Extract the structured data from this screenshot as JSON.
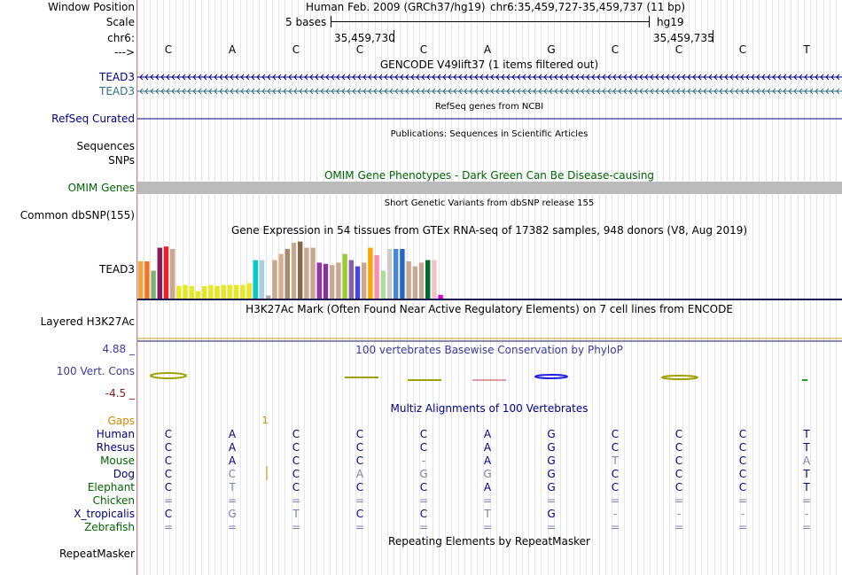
{
  "labels": {
    "window_position": "Window Position",
    "scale": "Scale",
    "chrom": "chr6:",
    "arrow": "--->",
    "tead3_a": "TEAD3",
    "tead3_b": "TEAD3",
    "refseq": "RefSeq Curated",
    "sequences": "Sequences",
    "snps": "SNPs",
    "omim": "OMIM Genes",
    "dbsnp": "Common dbSNP(155)",
    "gtex": "TEAD3",
    "h3k27ac": "Layered H3K27Ac",
    "phylop_max": "4.88 _",
    "cons": "100 Vert. Cons",
    "phylop_min": "-4.5 _",
    "gaps": "Gaps",
    "species": [
      {
        "name": "Human",
        "color": "#000080"
      },
      {
        "name": "Rhesus",
        "color": "#000080"
      },
      {
        "name": "Mouse",
        "color": "#006400"
      },
      {
        "name": "Dog",
        "color": "#000080"
      },
      {
        "name": "Elephant",
        "color": "#006400"
      },
      {
        "name": "Chicken",
        "color": "#006400"
      },
      {
        "name": "X_tropicalis",
        "color": "#000080"
      },
      {
        "name": "Zebrafish",
        "color": "#006400"
      }
    ],
    "repeatmasker": "RepeatMasker"
  },
  "header": {
    "assembly": "Human Feb. 2009 (GRCh37/hg19)",
    "position": "chr6:35,459,727-35,459,737 (11 bp)",
    "scale_text": "5 bases",
    "db": "hg19",
    "coord1": "35,459,730",
    "coord2": "35,459,735"
  },
  "bases": [
    "C",
    "A",
    "C",
    "C",
    "C",
    "A",
    "G",
    "C",
    "C",
    "C",
    "T"
  ],
  "tracks": {
    "gencode_title": "GENCODE V49lift37 (1 items filtered out)",
    "refseq_title": "RefSeq genes from NCBI",
    "pubs_title": "Publications: Sequences in Scientific Articles",
    "omim_title": "OMIM Gene Phenotypes - Dark Green Can Be Disease-causing",
    "dbsnp_title": "Short Genetic Variants from dbSNP release 155",
    "gtex_title": "Gene Expression in 54 tissues from GTEx RNA-seq of 17382 samples, 948 donors (V8, Aug 2019)",
    "h3k27ac_title": "H3K27Ac Mark (Often Found Near Active Regulatory Elements) on 7 cell lines from ENCODE",
    "phylop_title": "100 vertebrates Basewise Conservation by PhyloP",
    "multiz_title": "Multiz Alignments of 100 Vertebrates",
    "gap_count": "1",
    "repeat_title": "Repeating Elements by RepeatMasker"
  },
  "alignment": [
    [
      "C",
      "A",
      "C",
      "C",
      "C",
      "A",
      "G",
      "C",
      "C",
      "C",
      "T"
    ],
    [
      "C",
      "A",
      "C",
      "C",
      "C",
      "A",
      "G",
      "C",
      "C",
      "C",
      "T"
    ],
    [
      "C",
      "A",
      "C",
      "C",
      "-",
      "A",
      "G",
      "T",
      "C",
      "C",
      "A"
    ],
    [
      "C",
      "C",
      "C",
      "A",
      "G",
      "G",
      "G",
      "C",
      "C",
      "C",
      "T"
    ],
    [
      "C",
      "T",
      "C",
      "C",
      "C",
      "A",
      "G",
      "C",
      "C",
      "C",
      "T"
    ],
    [
      "=",
      "=",
      "=",
      "=",
      "=",
      "=",
      "=",
      "=",
      "=",
      "=",
      "="
    ],
    [
      "C",
      "G",
      "T",
      "C",
      "C",
      "T",
      "G",
      "-",
      "-",
      "-",
      "-"
    ],
    [
      "=",
      "=",
      "=",
      "=",
      "=",
      "=",
      "=",
      "=",
      "=",
      "=",
      "="
    ]
  ],
  "alignment_faded": [
    [
      0,
      0,
      0,
      0,
      0,
      0,
      0,
      0,
      0,
      0,
      0
    ],
    [
      0,
      0,
      0,
      0,
      0,
      0,
      0,
      0,
      0,
      0,
      0
    ],
    [
      0,
      0,
      0,
      0,
      1,
      0,
      0,
      1,
      0,
      0,
      1
    ],
    [
      0,
      1,
      0,
      1,
      1,
      1,
      0,
      0,
      0,
      0,
      0
    ],
    [
      0,
      1,
      0,
      0,
      0,
      0,
      0,
      0,
      0,
      0,
      0
    ],
    [
      1,
      1,
      1,
      1,
      1,
      1,
      1,
      1,
      1,
      1,
      1
    ],
    [
      0,
      1,
      1,
      0,
      0,
      1,
      0,
      1,
      1,
      1,
      1
    ],
    [
      1,
      1,
      1,
      1,
      1,
      1,
      1,
      1,
      1,
      1,
      1
    ]
  ],
  "gtex": {
    "colors": [
      "#f7a23a",
      "#f4741e",
      "#7ab36f",
      "#8b1a5b",
      "#ee2222",
      "#c8a890",
      "#e8e820",
      "#e8e820",
      "#e8e820",
      "#e8e820",
      "#e8e820",
      "#e8e820",
      "#e8e820",
      "#e8e820",
      "#e8e820",
      "#e8e820",
      "#e8e820",
      "#e8e820",
      "#00cccc",
      "#a8d0dc",
      "#aaaaaa",
      "#c8a890",
      "#d6b090",
      "#a88a6a",
      "#c8a890",
      "#86674a",
      "#c8a890",
      "#c8a890",
      "#9933aa",
      "#883399",
      "#c8a890",
      "#c8a890",
      "#9acd32",
      "#8b5fa8",
      "#4444ee",
      "#c8a890",
      "#ffa500",
      "#ff8cb0",
      "#aadd99",
      "#cccccc",
      "#4488dd",
      "#2266cc",
      "#c8a890",
      "#c8a890",
      "#c8a890",
      "#006a33",
      "#f0c4c4",
      "#dd00dd"
    ],
    "values": [
      0.6,
      0.6,
      0.45,
      0.82,
      0.84,
      0.8,
      0.2,
      0.22,
      0.2,
      0.12,
      0.2,
      0.22,
      0.2,
      0.22,
      0.22,
      0.22,
      0.22,
      0.25,
      0.62,
      0.62,
      0.05,
      0.62,
      0.72,
      0.8,
      0.9,
      0.92,
      0.82,
      0.82,
      0.58,
      0.56,
      0.54,
      0.58,
      0.72,
      0.62,
      0.52,
      0.58,
      0.82,
      0.7,
      0.45,
      0.8,
      0.8,
      0.8,
      0.6,
      0.52,
      0.58,
      0.62,
      0.62,
      0.06
    ]
  },
  "colors": {
    "label_blue": "#000080",
    "teal": "#307080",
    "omim_green": "#006400",
    "omim_bar": "#bbbbbb",
    "phylop_blue": "#3a3a9a",
    "phylop_min_red": "#8b2020",
    "gaps_orange": "#d08800",
    "faded_text": "#8080b0"
  }
}
